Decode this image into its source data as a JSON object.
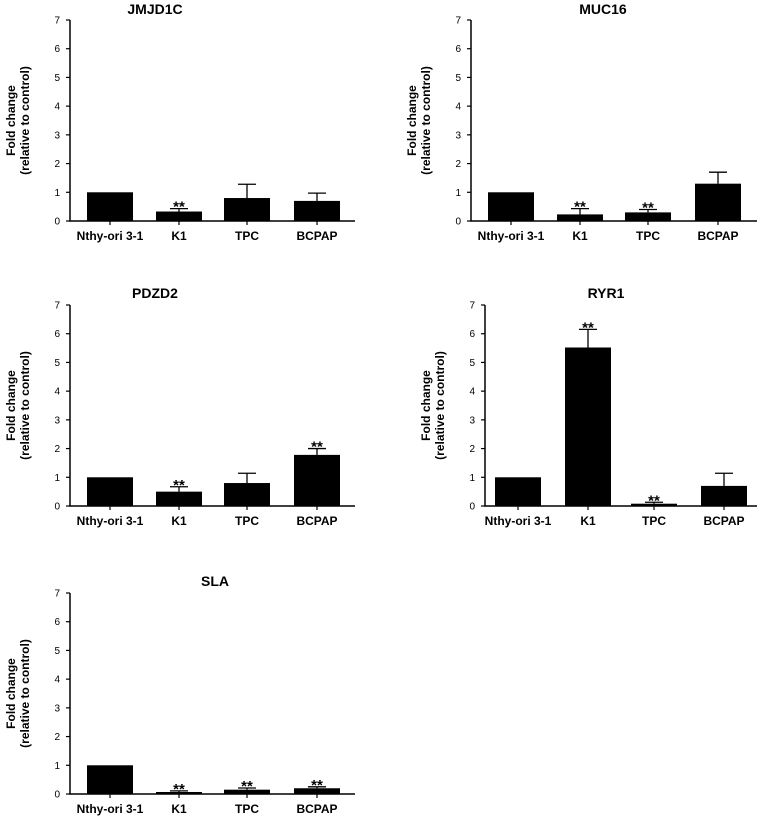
{
  "chart_data": [
    {
      "type": "bar",
      "title": "JMJD1C",
      "ylabel": [
        "Fold change",
        "(relative to control)"
      ],
      "categories": [
        "Nthy-ori 3-1",
        "K1",
        "TPC",
        "BCPAP"
      ],
      "values": [
        1.0,
        0.33,
        0.8,
        0.7
      ],
      "errors": [
        0,
        0.1,
        0.48,
        0.27
      ],
      "significance": [
        "",
        "**",
        "",
        ""
      ],
      "ylim": [
        0,
        7
      ],
      "yticks": [
        0,
        1,
        2,
        3,
        4,
        5,
        6,
        7
      ]
    },
    {
      "type": "bar",
      "title": "MUC16",
      "ylabel": [
        "Fold change",
        "(relative to control)"
      ],
      "categories": [
        "Nthy-ori 3-1",
        "K1",
        "TPC",
        "BCPAP"
      ],
      "values": [
        1.0,
        0.23,
        0.3,
        1.3
      ],
      "errors": [
        0,
        0.2,
        0.1,
        0.4
      ],
      "significance": [
        "",
        "**",
        "**",
        ""
      ],
      "ylim": [
        0,
        7
      ],
      "yticks": [
        0,
        1,
        2,
        3,
        4,
        5,
        6,
        7
      ]
    },
    {
      "type": "bar",
      "title": "PDZD2",
      "ylabel": [
        "Fold change",
        "(relative to control)"
      ],
      "categories": [
        "Nthy-ori 3-1",
        "K1",
        "TPC",
        "BCPAP"
      ],
      "values": [
        1.0,
        0.5,
        0.8,
        1.78
      ],
      "errors": [
        0,
        0.17,
        0.34,
        0.22
      ],
      "significance": [
        "",
        "**",
        "",
        "**"
      ],
      "ylim": [
        0,
        7
      ],
      "yticks": [
        0,
        1,
        2,
        3,
        4,
        5,
        6,
        7
      ]
    },
    {
      "type": "bar",
      "title": "RYR1",
      "ylabel": [
        "Fold change",
        "(relative to control)"
      ],
      "categories": [
        "Nthy-ori 3-1",
        "K1",
        "TPC",
        "BCPAP"
      ],
      "values": [
        1.0,
        5.52,
        0.08,
        0.7
      ],
      "errors": [
        0,
        0.63,
        0.05,
        0.44
      ],
      "significance": [
        "",
        "**",
        "**",
        ""
      ],
      "ylim": [
        0,
        7
      ],
      "yticks": [
        0,
        1,
        2,
        3,
        4,
        5,
        6,
        7
      ]
    },
    {
      "type": "bar",
      "title": "SLA",
      "ylabel": [
        "Fold change",
        "(relative to control)"
      ],
      "categories": [
        "Nthy-ori 3-1",
        "K1",
        "TPC",
        "BCPAP"
      ],
      "values": [
        1.0,
        0.07,
        0.15,
        0.2
      ],
      "errors": [
        0,
        0.04,
        0.06,
        0.05
      ],
      "significance": [
        "",
        "**",
        "**",
        "**"
      ],
      "ylim": [
        0,
        7
      ],
      "yticks": [
        0,
        1,
        2,
        3,
        4,
        5,
        6,
        7
      ]
    }
  ],
  "colors": {
    "bar": "#000000",
    "axis": "#000000",
    "background": "#ffffff"
  }
}
